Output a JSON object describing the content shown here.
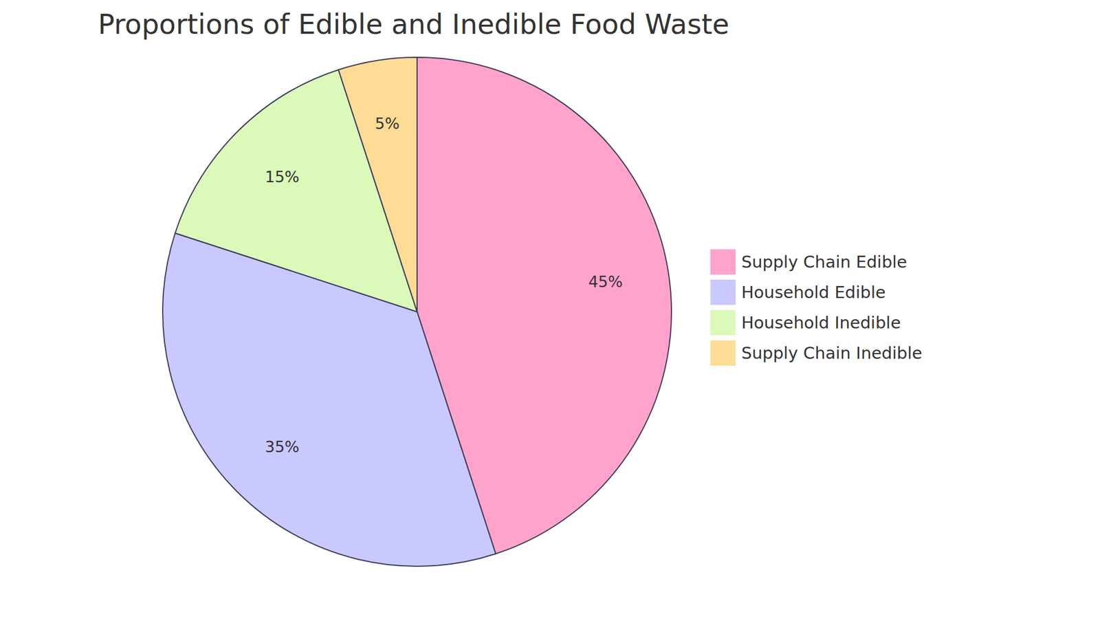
{
  "chart_data": {
    "type": "pie",
    "title": "Proportions of Edible and Inedible Food Waste",
    "categories": [
      "Supply Chain Edible",
      "Household Edible",
      "Household Inedible",
      "Supply Chain Inedible"
    ],
    "values": [
      45,
      35,
      15,
      5
    ],
    "value_labels": [
      "45%",
      "35%",
      "15%",
      "5%"
    ],
    "colors": [
      "#ffa3cc",
      "#c9c9ff",
      "#dbf9b9",
      "#fedc95"
    ],
    "data_labels": true,
    "legend": "right"
  }
}
